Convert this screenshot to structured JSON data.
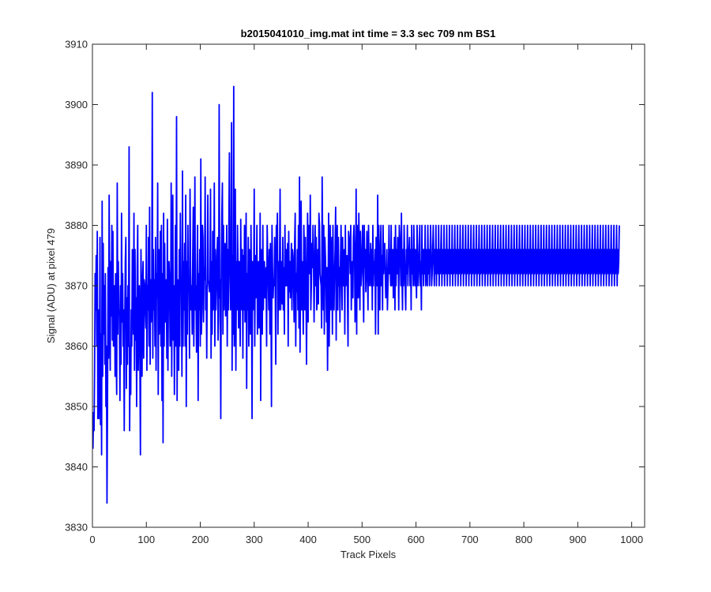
{
  "chart_data": {
    "type": "line",
    "title": "b2015041010_img.mat int time = 3.3 sec  709 nm BS1",
    "xlabel": "Track Pixels",
    "ylabel": "Signal (ADU) at pixel 479",
    "xlim": [
      0,
      1024
    ],
    "ylim": [
      3830,
      3910
    ],
    "xticks": [
      "0",
      "100",
      "200",
      "300",
      "400",
      "500",
      "600",
      "700",
      "800",
      "900",
      "1000"
    ],
    "yticks": [
      "3830",
      "3840",
      "3850",
      "3860",
      "3870",
      "3880",
      "3890",
      "3900",
      "3910"
    ],
    "grid": false,
    "legend": "none",
    "line_color": "#0000ff",
    "series": [
      {
        "x_start": 1,
        "x_step": 1,
        "values_note_excluded": true,
        "values": [
          3843,
          3849,
          3846,
          3856,
          3872,
          3866,
          3875,
          3860,
          3879,
          3848,
          3866,
          3848,
          3853,
          3878,
          3847,
          3862,
          3842,
          3884,
          3855,
          3877,
          3862,
          3870,
          3857,
          3872,
          3850,
          3860,
          3834,
          3851,
          3873,
          3858,
          3885,
          3868,
          3856,
          3874,
          3865,
          3880,
          3861,
          3879,
          3860,
          3867,
          3870,
          3855,
          3872,
          3859,
          3852,
          3887,
          3862,
          3874,
          3866,
          3865,
          3851,
          3870,
          3857,
          3882,
          3864,
          3872,
          3860,
          3866,
          3846,
          3864,
          3874,
          3878,
          3853,
          3868,
          3857,
          3870,
          3860,
          3893,
          3846,
          3860,
          3852,
          3866,
          3860,
          3876,
          3870,
          3862,
          3882,
          3856,
          3876,
          3861,
          3868,
          3850,
          3873,
          3880,
          3856,
          3864,
          3870,
          3858,
          3842,
          3876,
          3868,
          3855,
          3871,
          3874,
          3858,
          3871,
          3870,
          3866,
          3863,
          3880,
          3856,
          3870,
          3866,
          3878,
          3860,
          3883,
          3857,
          3871,
          3864,
          3868,
          3902,
          3858,
          3876,
          3866,
          3871,
          3860,
          3878,
          3856,
          3872,
          3868,
          3887,
          3852,
          3876,
          3862,
          3867,
          3879,
          3860,
          3880,
          3851,
          3872,
          3844,
          3882,
          3860,
          3877,
          3864,
          3871,
          3870,
          3858,
          3881,
          3856,
          3869,
          3874,
          3871,
          3860,
          3864,
          3887,
          3855,
          3872,
          3885,
          3861,
          3870,
          3852,
          3866,
          3880,
          3860,
          3898,
          3851,
          3871,
          3870,
          3856,
          3876,
          3860,
          3882,
          3869,
          3870,
          3855,
          3889,
          3860,
          3874,
          3866,
          3877,
          3860,
          3885,
          3850,
          3874,
          3862,
          3880,
          3869,
          3870,
          3858,
          3886,
          3873,
          3866,
          3870,
          3862,
          3875,
          3883,
          3860,
          3871,
          3888,
          3866,
          3870,
          3859,
          3873,
          3880,
          3851,
          3872,
          3866,
          3876,
          3860,
          3891,
          3862,
          3866,
          3880,
          3878,
          3864,
          3873,
          3871,
          3888,
          3866,
          3870,
          3858,
          3873,
          3885,
          3871,
          3870,
          3869,
          3870,
          3886,
          3858,
          3874,
          3862,
          3879,
          3866,
          3870,
          3887,
          3860,
          3876,
          3866,
          3870,
          3875,
          3878,
          3861,
          3865,
          3900,
          3868,
          3871,
          3848,
          3874,
          3882,
          3887,
          3862,
          3880,
          3866,
          3870,
          3877,
          3865,
          3870,
          3880,
          3860,
          3876,
          3866,
          3880,
          3892,
          3872,
          3866,
          3870,
          3897,
          3856,
          3875,
          3862,
          3903,
          3860,
          3871,
          3886,
          3856,
          3874,
          3866,
          3880,
          3873,
          3863,
          3874,
          3871,
          3860,
          3881,
          3870,
          3866,
          3876,
          3858,
          3875,
          3866,
          3880,
          3864,
          3870,
          3882,
          3853,
          3872,
          3866,
          3878,
          3860,
          3876,
          3869,
          3862,
          3880,
          3870,
          3848,
          3874,
          3866,
          3870,
          3886,
          3860,
          3875,
          3868,
          3870,
          3880,
          3862,
          3872,
          3874,
          3863,
          3870,
          3882,
          3851,
          3876,
          3870,
          3862,
          3880,
          3866,
          3872,
          3874,
          3868,
          3870,
          3873,
          3860,
          3880,
          3875,
          3871,
          3866,
          3876,
          3862,
          3877,
          3870,
          3850,
          3880,
          3873,
          3868,
          3871,
          3870,
          3878,
          3870,
          3857,
          3880,
          3876,
          3882,
          3862,
          3874,
          3866,
          3873,
          3886,
          3866,
          3870,
          3874,
          3867,
          3878,
          3866,
          3873,
          3862,
          3880,
          3870,
          3870,
          3876,
          3870,
          3877,
          3860,
          3879,
          3869,
          3874,
          3868,
          3872,
          3877,
          3866,
          3876,
          3875,
          3870,
          3864,
          3877,
          3882,
          3860,
          3872,
          3869,
          3876,
          3866,
          3880,
          3863,
          3888,
          3859,
          3873,
          3884,
          3866,
          3874,
          3870,
          3862,
          3880,
          3876,
          3866,
          3878,
          3870,
          3857,
          3872,
          3882,
          3864,
          3880,
          3876,
          3872,
          3885,
          3866,
          3870,
          3877,
          3873,
          3880,
          3874,
          3864,
          3872,
          3880,
          3870,
          3878,
          3866,
          3868,
          3876,
          3867,
          3882,
          3880,
          3872,
          3871,
          3870,
          3863,
          3888,
          3876,
          3866,
          3880,
          3862,
          3878,
          3875,
          3871,
          3864,
          3873,
          3856,
          3869,
          3882,
          3860,
          3870,
          3880,
          3866,
          3873,
          3878,
          3862,
          3880,
          3870,
          3866,
          3872,
          3876,
          3883,
          3861,
          3876,
          3880,
          3866,
          3878,
          3870,
          3873,
          3864,
          3874,
          3880,
          3872,
          3866,
          3878,
          3870,
          3872,
          3876,
          3862,
          3880,
          3870,
          3874,
          3875,
          3868,
          3860,
          3879,
          3878,
          3876,
          3872,
          3880,
          3866,
          3872,
          3874,
          3868,
          3878,
          3880,
          3876,
          3864,
          3870,
          3886,
          3862,
          3880,
          3874,
          3868,
          3882,
          3876,
          3866,
          3879,
          3870,
          3872,
          3876,
          3880,
          3870,
          3864,
          3880,
          3873,
          3876,
          3869,
          3872,
          3879,
          3873,
          3866,
          3880,
          3873,
          3870,
          3874,
          3877,
          3870,
          3876,
          3866,
          3880,
          3870,
          3874,
          3872,
          3876,
          3862,
          3878,
          3876,
          3870,
          3885,
          3862,
          3880,
          3874,
          3866,
          3876,
          3880,
          3870,
          3875,
          3866,
          3880,
          3872,
          3876,
          3877,
          3872,
          3868,
          3870,
          3876,
          3866,
          3870,
          3873,
          3880,
          3872,
          3876,
          3870,
          3880,
          3870,
          3873,
          3876,
          3868,
          3872,
          3878,
          3866,
          3880,
          3870,
          3876,
          3872,
          3878,
          3876,
          3866,
          3880,
          3878,
          3874,
          3870,
          3882,
          3872,
          3866,
          3876,
          3870,
          3880,
          3874,
          3870,
          3866,
          3876,
          3872,
          3880,
          3870,
          3874,
          3876,
          3878,
          3870,
          3876,
          3866,
          3880,
          3872,
          3876,
          3870,
          3880,
          3874,
          3870,
          3876,
          3872,
          3868,
          3880,
          3876,
          3870,
          3872,
          3876,
          3880,
          3870,
          3874,
          3866,
          3880,
          3872,
          3876,
          3870,
          3876,
          3872,
          3880,
          3870,
          3876,
          3874,
          3870,
          3880,
          3872,
          3876,
          3870,
          3874,
          3880,
          3876,
          3870,
          3872,
          3876,
          3880,
          3874,
          3870,
          3876,
          3872,
          3880,
          3870,
          3876,
          3874,
          3872,
          3880,
          3870,
          3876,
          3872,
          3876,
          3880,
          3870,
          3874,
          3876,
          3872,
          3880,
          3870,
          3876,
          3874,
          3872,
          3880,
          3870,
          3876,
          3874,
          3872,
          3880,
          3870,
          3876,
          3874,
          3872,
          3880,
          3870,
          3876,
          3872,
          3874,
          3880,
          3870,
          3876,
          3872,
          3874,
          3880,
          3870,
          3876,
          3872,
          3874,
          3880,
          3870,
          3876,
          3872,
          3874,
          3880,
          3870,
          3876,
          3872,
          3874,
          3880,
          3870,
          3876,
          3872,
          3874,
          3880,
          3870,
          3876,
          3872,
          3874,
          3880,
          3870,
          3876,
          3872,
          3874,
          3880,
          3870,
          3876,
          3872,
          3874,
          3880,
          3870,
          3876,
          3872,
          3874,
          3880,
          3870,
          3876,
          3872,
          3874,
          3880,
          3870,
          3876,
          3872,
          3874,
          3880,
          3870,
          3876,
          3872,
          3874,
          3880,
          3870,
          3876,
          3872,
          3874,
          3880,
          3870,
          3876,
          3872,
          3874,
          3880,
          3870,
          3876,
          3872,
          3874,
          3880,
          3870,
          3876,
          3872,
          3874,
          3880,
          3870,
          3876,
          3872,
          3874,
          3880,
          3870,
          3876,
          3872,
          3874,
          3880,
          3870,
          3876,
          3872,
          3874,
          3880,
          3870,
          3876,
          3872,
          3874,
          3880,
          3870,
          3876,
          3872,
          3874,
          3880,
          3870,
          3876,
          3872,
          3874,
          3880,
          3870,
          3876,
          3872,
          3874,
          3880,
          3870,
          3876,
          3872,
          3874,
          3880,
          3870,
          3876,
          3872,
          3874,
          3880,
          3870,
          3876,
          3872,
          3874,
          3880,
          3870,
          3876,
          3872,
          3874,
          3880,
          3870,
          3876,
          3872,
          3874,
          3880,
          3870,
          3876,
          3872,
          3874,
          3880,
          3870,
          3876,
          3872,
          3874,
          3880,
          3870,
          3876,
          3872,
          3874,
          3880,
          3870,
          3876,
          3872,
          3874,
          3880,
          3870,
          3876,
          3872,
          3874,
          3880,
          3870,
          3876,
          3872,
          3874,
          3880,
          3870,
          3876,
          3872,
          3874,
          3880,
          3870,
          3876,
          3872,
          3874,
          3880,
          3870,
          3876,
          3872,
          3874,
          3880,
          3870,
          3876,
          3872,
          3874,
          3880,
          3870,
          3876,
          3872,
          3874,
          3880,
          3870,
          3876,
          3872,
          3874,
          3880,
          3870,
          3876,
          3872,
          3874,
          3880,
          3870,
          3876,
          3872,
          3874,
          3880,
          3870,
          3876,
          3872,
          3874,
          3880,
          3870,
          3876,
          3872,
          3874,
          3880,
          3870,
          3876,
          3872,
          3874,
          3880,
          3870,
          3876,
          3872,
          3874,
          3880,
          3870,
          3876,
          3872,
          3874,
          3880,
          3870,
          3876,
          3872,
          3874,
          3880,
          3870,
          3876,
          3872,
          3874,
          3880,
          3870,
          3876,
          3872,
          3874,
          3880,
          3870,
          3876,
          3872,
          3874,
          3880,
          3870,
          3876,
          3872,
          3874,
          3880,
          3870,
          3876,
          3872,
          3874,
          3880,
          3870,
          3876,
          3872,
          3874,
          3880,
          3870,
          3876,
          3872,
          3874,
          3880,
          3870,
          3876,
          3872,
          3874,
          3880,
          3870,
          3876,
          3872,
          3874,
          3880,
          3870,
          3876,
          3872,
          3874,
          3880,
          3870,
          3876,
          3872,
          3874,
          3880,
          3870,
          3876,
          3872,
          3874,
          3880,
          3870,
          3876,
          3872,
          3874,
          3880
        ]
      }
    ]
  }
}
